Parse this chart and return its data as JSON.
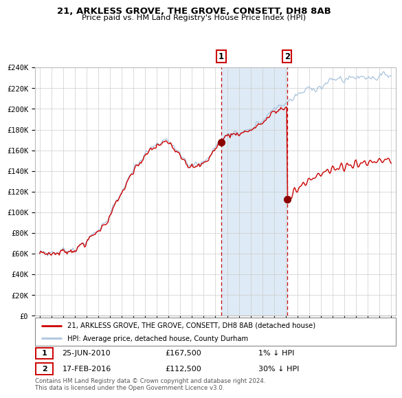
{
  "title": "21, ARKLESS GROVE, THE GROVE, CONSETT, DH8 8AB",
  "subtitle": "Price paid vs. HM Land Registry's House Price Index (HPI)",
  "legend_line1": "21, ARKLESS GROVE, THE GROVE, CONSETT, DH8 8AB (detached house)",
  "legend_line2": "HPI: Average price, detached house, County Durham",
  "annotation1_date": "25-JUN-2010",
  "annotation1_price": "£167,500",
  "annotation1_hpi": "1% ↓ HPI",
  "annotation2_date": "17-FEB-2016",
  "annotation2_price": "£112,500",
  "annotation2_hpi": "30% ↓ HPI",
  "footer": "Contains HM Land Registry data © Crown copyright and database right 2024.\nThis data is licensed under the Open Government Licence v3.0.",
  "hpi_line_color": "#aac4de",
  "property_line_color": "#cc0000",
  "marker_color": "#8b0000",
  "shade_color": "#deeaf5",
  "vline_color": "#cc0000",
  "ylim_min": 0,
  "ylim_max": 240000,
  "x_start_year": 1995,
  "x_end_year": 2025,
  "event1_year": 2010.5,
  "event1_value": 167500,
  "event2_year": 2016.12,
  "event2_value": 112500
}
